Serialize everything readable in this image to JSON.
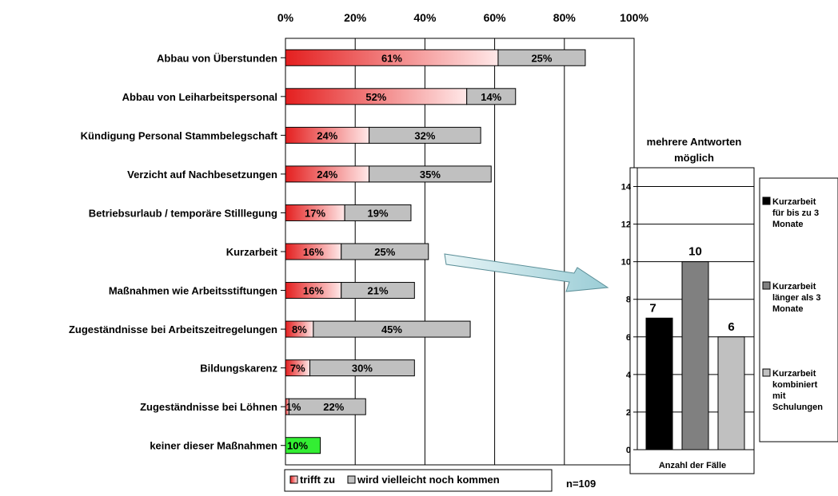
{
  "colors": {
    "trifft_zu_dark": "#e41f1f",
    "trifft_zu_light": "#ffe8e8",
    "wird_vielleicht": "#c0c0c0",
    "green": "#33ee33",
    "bar_dark": "#000000",
    "bar_mid": "#808080",
    "bar_light": "#c0c0c0",
    "arrow_light": "#e6f4f6",
    "arrow_dark": "#9bcdd6"
  },
  "chart_data": [
    {
      "type": "bar",
      "orientation": "horizontal",
      "stacked": true,
      "x_axis_position": "top",
      "xlim": [
        0,
        100
      ],
      "x_ticks": [
        "0%",
        "20%",
        "40%",
        "60%",
        "80%",
        "100%"
      ],
      "categories": [
        "Abbau von Überstunden",
        "Abbau von Leiharbeitspersonal",
        "Kündigung Personal Stammbelegschaft",
        "Verzicht auf Nachbesetzungen",
        "Betriebsurlaub / temporäre Stilllegung",
        "Kurzarbeit",
        "Maßnahmen wie Arbeitsstiftungen",
        "Zugeständnisse bei Arbeitszeitregelungen",
        "Bildungskarenz",
        "Zugeständnisse bei Löhnen",
        "keiner dieser Maßnahmen"
      ],
      "series": [
        {
          "name": "trifft zu",
          "values": [
            61,
            52,
            24,
            24,
            17,
            16,
            16,
            8,
            7,
            1,
            10
          ],
          "labels": [
            "61%",
            "52%",
            "24%",
            "24%",
            "17%",
            "16%",
            "16%",
            "8%",
            "7%",
            "1%",
            "10%"
          ]
        },
        {
          "name": "wird vielleicht noch kommen",
          "values": [
            25,
            14,
            32,
            35,
            19,
            25,
            21,
            45,
            30,
            22,
            null
          ],
          "labels": [
            "25%",
            "14%",
            "32%",
            "35%",
            "19%",
            "25%",
            "21%",
            "45%",
            "30%",
            "22%",
            ""
          ]
        }
      ],
      "legend_position": "bottom",
      "note": "n=109"
    },
    {
      "type": "bar",
      "title": "mehrere Antworten möglich",
      "xlabel": "Anzahl der Fälle",
      "ylim": [
        0,
        15
      ],
      "y_ticks": [
        "0",
        "2",
        "4",
        "6",
        "8",
        "10",
        "12",
        "14"
      ],
      "grid": true,
      "series": [
        {
          "name": "Kurzarbeit für bis zu 3 Monate",
          "value": 7,
          "label": "7"
        },
        {
          "name": "Kurzarbeit länger als 3 Monate",
          "value": 10,
          "label": "10"
        },
        {
          "name": "Kurzarbeit kombiniert mit Schulungen",
          "value": 6,
          "label": "6"
        }
      ],
      "legend_position": "right"
    }
  ],
  "legend_main": {
    "item1": "trifft zu",
    "item2": "wird vielleicht noch kommen"
  },
  "side_legend": [
    {
      "lines": [
        "Kurzarbeit",
        "für bis zu 3",
        "Monate"
      ]
    },
    {
      "lines": [
        "Kurzarbeit",
        "länger als 3",
        "Monate"
      ]
    },
    {
      "lines": [
        "Kurzarbeit",
        "kombiniert",
        "mit",
        "Schulungen"
      ]
    }
  ]
}
